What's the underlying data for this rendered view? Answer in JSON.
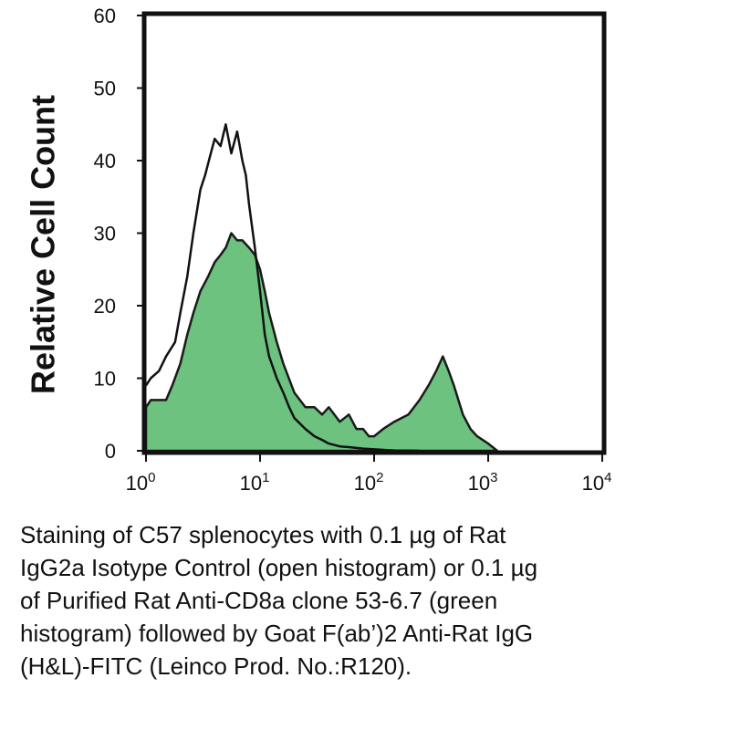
{
  "chart_data": {
    "type": "area",
    "ylabel": "Relative Cell Count",
    "xlabel": "",
    "xscale": "log",
    "xlim": [
      1,
      10000
    ],
    "ylim": [
      0,
      60
    ],
    "x_ticks": [
      {
        "base": "10",
        "exp": "0"
      },
      {
        "base": "10",
        "exp": "1"
      },
      {
        "base": "10",
        "exp": "2"
      },
      {
        "base": "10",
        "exp": "3"
      },
      {
        "base": "10",
        "exp": "4"
      }
    ],
    "y_ticks": [
      "0",
      "10",
      "20",
      "30",
      "40",
      "50",
      "60"
    ],
    "series": [
      {
        "style": "open",
        "color": "#111111",
        "x": [
          1,
          1.1,
          1.3,
          1.5,
          1.8,
          2,
          2.3,
          2.6,
          3,
          3.3,
          3.7,
          4,
          4.5,
          5,
          5.6,
          6.3,
          7,
          7.5,
          8,
          9,
          10,
          11,
          12,
          14,
          16,
          18,
          20,
          25,
          30,
          35,
          40,
          50,
          60,
          80,
          100,
          130,
          150,
          200,
          250
        ],
        "y": [
          9,
          10,
          11,
          13,
          15,
          19,
          24,
          30,
          36,
          38,
          41,
          43,
          42,
          45,
          41,
          44,
          40,
          38,
          34,
          28,
          22,
          16,
          13,
          10,
          8,
          6,
          4.5,
          3,
          2,
          1.5,
          1,
          0.6,
          0.5,
          0.3,
          0.2,
          0.1,
          0.05,
          0.02,
          0
        ]
      },
      {
        "style": "filled",
        "color": "#6cc27e",
        "x": [
          1,
          1.1,
          1.3,
          1.5,
          1.7,
          2,
          2.3,
          2.6,
          3,
          3.5,
          4,
          4.5,
          5,
          5.6,
          6.3,
          7,
          8,
          9,
          10,
          11,
          12,
          14,
          16,
          20,
          25,
          30,
          35,
          40,
          50,
          60,
          70,
          80,
          90,
          100,
          120,
          150,
          200,
          250,
          300,
          350,
          400,
          450,
          500,
          600,
          700,
          800,
          1000,
          1200
        ],
        "y": [
          6,
          7,
          7,
          7,
          9,
          12,
          16,
          19,
          22,
          24,
          26,
          27,
          28,
          30,
          29,
          29,
          28,
          27,
          25,
          22,
          19,
          15,
          12,
          8,
          6,
          6,
          5,
          6,
          4,
          5,
          3,
          3,
          2,
          2,
          3,
          4,
          5,
          7,
          9,
          11,
          13,
          11,
          9,
          5,
          3,
          2,
          1,
          0
        ]
      }
    ]
  },
  "caption": {
    "lines": [
      "Staining of C57 splenocytes with 0.1 µg of Rat",
      "IgG2a Isotype Control (open histogram) or 0.1 µg",
      "of Purified Rat Anti-CD8a clone 53-6.7 (green",
      "histogram) followed by Goat F(ab’)2 Anti-Rat IgG",
      "(H&L)-FITC (Leinco Prod. No.:R120)."
    ]
  }
}
